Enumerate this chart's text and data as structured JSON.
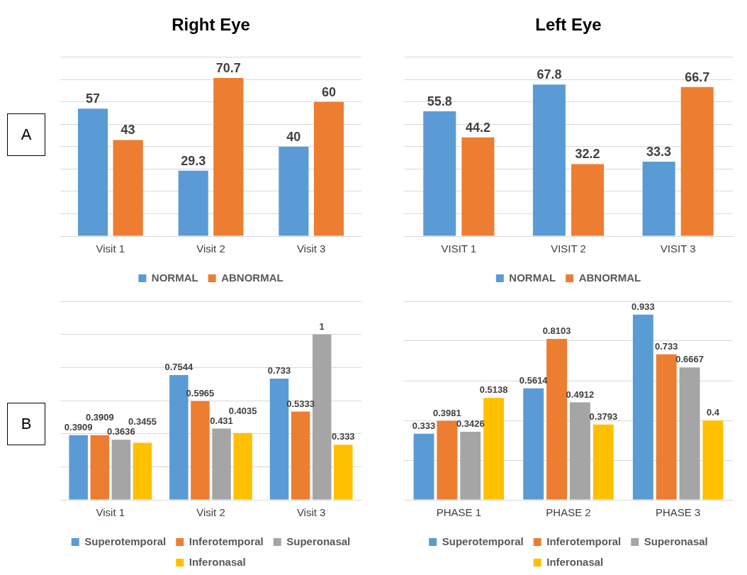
{
  "chart_data": [
    {
      "type": "bar",
      "title": "Right Eye",
      "categories": [
        "Visit 1",
        "Visit 2",
        "Visit 3"
      ],
      "series": [
        {
          "name": "NORMAL",
          "color": "#5b9bd5",
          "values": [
            57,
            29.3,
            40
          ]
        },
        {
          "name": "ABNORMAL",
          "color": "#ed7d31",
          "values": [
            43,
            70.7,
            60
          ]
        }
      ],
      "ylim": [
        0,
        80
      ],
      "yticks": [
        {
          "value": 0,
          "label": null
        },
        {
          "value": 10,
          "label": null
        },
        {
          "value": 20,
          "label": null
        },
        {
          "value": 30,
          "label": null
        },
        {
          "value": 40,
          "label": null
        },
        {
          "value": 50,
          "label": null
        },
        {
          "value": 60,
          "label": null
        },
        {
          "value": 70,
          "label": null
        },
        {
          "value": 80,
          "label": null
        }
      ],
      "grid": "y",
      "legend": "bottom",
      "tick_labels": "x",
      "data_labels": true,
      "annotations": [
        "A"
      ]
    },
    {
      "type": "bar",
      "title": "Left Eye",
      "categories": [
        "VISIT 1",
        "VISIT 2",
        "VISIT 3"
      ],
      "series": [
        {
          "name": "NORMAL",
          "color": "#5b9bd5",
          "values": [
            55.8,
            67.8,
            33.3
          ]
        },
        {
          "name": "ABNORMAL",
          "color": "#ed7d31",
          "values": [
            44.2,
            32.2,
            66.7
          ]
        }
      ],
      "ylim": [
        0,
        80
      ],
      "yticks": [
        {
          "value": 0,
          "label": null
        },
        {
          "value": 10,
          "label": null
        },
        {
          "value": 20,
          "label": null
        },
        {
          "value": 30,
          "label": null
        },
        {
          "value": 40,
          "label": null
        },
        {
          "value": 50,
          "label": null
        },
        {
          "value": 60,
          "label": null
        },
        {
          "value": 70,
          "label": null
        },
        {
          "value": 80,
          "label": null
        }
      ],
      "grid": "y",
      "legend": "bottom",
      "tick_labels": "x",
      "data_labels": true
    },
    {
      "type": "bar",
      "categories": [
        "Visit 1",
        "Visit 2",
        "Visit 3"
      ],
      "series": [
        {
          "name": "Superotemporal",
          "color": "#5b9bd5",
          "values": [
            0.3909,
            0.7544,
            0.733
          ]
        },
        {
          "name": "Inferotemporal",
          "color": "#ed7d31",
          "values": [
            0.3909,
            0.5965,
            0.5333
          ]
        },
        {
          "name": "Superonasal",
          "color": "#a5a5a5",
          "values": [
            0.3636,
            0.431,
            1
          ]
        },
        {
          "name": "Inferonasal",
          "color": "#ffc000",
          "values": [
            0.3455,
            0.4035,
            0.333
          ]
        }
      ],
      "ylim": [
        0,
        1.2
      ],
      "yticks": [
        {
          "value": 0,
          "label": null
        },
        {
          "value": 0.2,
          "label": null
        },
        {
          "value": 0.4,
          "label": null
        },
        {
          "value": 0.6,
          "label": null
        },
        {
          "value": 0.8,
          "label": null
        },
        {
          "value": 1,
          "label": null
        },
        {
          "value": 1.2,
          "label": null
        }
      ],
      "grid": "y",
      "legend": "bottom",
      "tick_labels": "x",
      "data_labels": true,
      "annotations": [
        "B"
      ]
    },
    {
      "type": "bar",
      "categories": [
        "PHASE 1",
        "PHASE 2",
        "PHASE 3"
      ],
      "series": [
        {
          "name": "Superotemporal",
          "color": "#5b9bd5",
          "values": [
            0.333,
            0.5614,
            0.933
          ]
        },
        {
          "name": "Inferotemporal",
          "color": "#ed7d31",
          "values": [
            0.3981,
            0.8103,
            0.733
          ]
        },
        {
          "name": "Superonasal",
          "color": "#a5a5a5",
          "values": [
            0.3426,
            0.4912,
            0.6667
          ]
        },
        {
          "name": "Inferonasal",
          "color": "#ffc000",
          "values": [
            0.5138,
            0.3793,
            0.4
          ]
        }
      ],
      "ylim": [
        0,
        1
      ],
      "yticks": [
        {
          "value": 0,
          "label": null
        },
        {
          "value": 0.2,
          "label": null
        },
        {
          "value": 0.4,
          "label": null
        },
        {
          "value": 0.6,
          "label": null
        },
        {
          "value": 0.8,
          "label": null
        },
        {
          "value": 1,
          "label": null
        }
      ],
      "grid": "y",
      "legend": "bottom",
      "tick_labels": "x",
      "data_labels": true
    }
  ]
}
